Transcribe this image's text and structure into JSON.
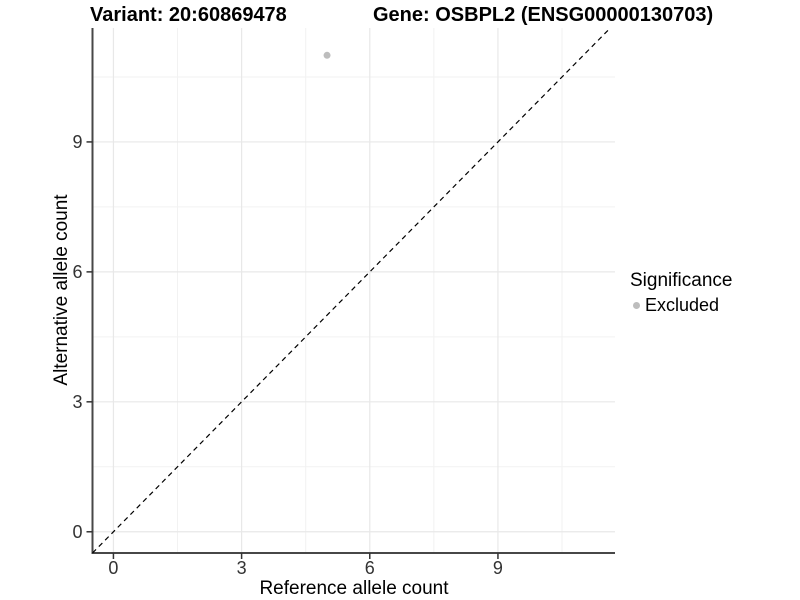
{
  "chart_data": {
    "type": "scatter",
    "titles": {
      "left": "Variant: 20:60869478",
      "right": "Gene: OSBPL2 (ENSG00000130703)"
    },
    "xlabel": "Reference allele count",
    "ylabel": "Alternative allele count",
    "xlim": [
      -0.49,
      11.74
    ],
    "ylim": [
      -0.49,
      11.63
    ],
    "x_ticks": [
      0,
      3,
      6,
      9
    ],
    "y_ticks": [
      0,
      3,
      6,
      9
    ],
    "x_minor_ticks": [
      1.5,
      4.5,
      7.5,
      10.5
    ],
    "y_minor_ticks": [
      1.5,
      4.5,
      7.5,
      10.5
    ],
    "grid": "major+minor",
    "series": [
      {
        "name": "Excluded",
        "color": "#bdbdbd",
        "points": [
          {
            "x": 5,
            "y": 11
          }
        ]
      }
    ],
    "reference_line": {
      "kind": "identity",
      "slope": 1,
      "intercept": 0,
      "linetype": "dashed",
      "color": "#000000"
    },
    "legend": {
      "title": "Significance",
      "position": "right",
      "items": [
        {
          "label": "Excluded",
          "color": "#bdbdbd"
        }
      ]
    },
    "colors": {
      "background": "#ffffff",
      "grid_major": "#e8e8e8",
      "grid_minor": "#f2f2f2",
      "axis_line": "#474747",
      "tick_mark": "#333333",
      "tick_label": "#333333",
      "point": "#bdbdbd",
      "reference_line": "#000000"
    }
  }
}
